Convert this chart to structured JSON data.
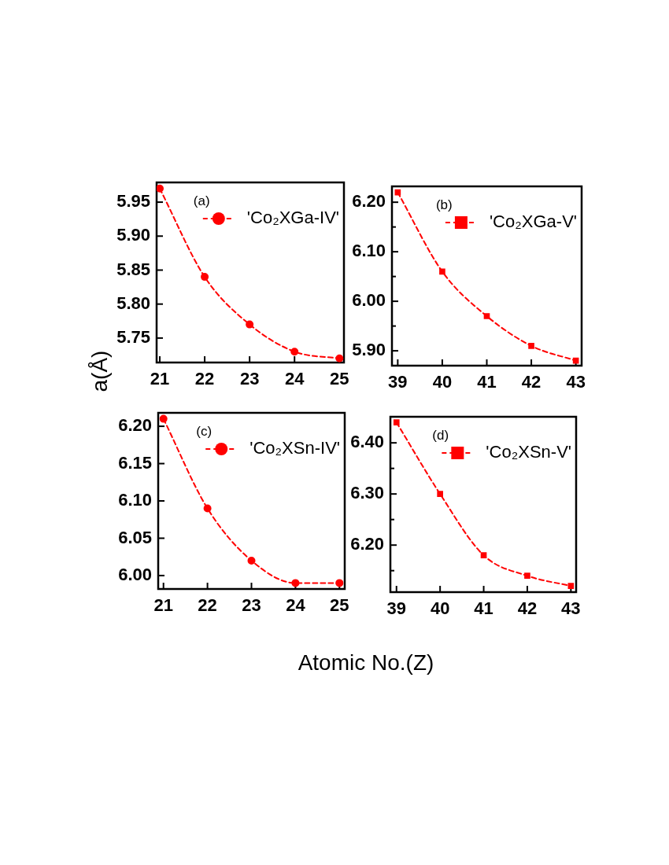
{
  "chart_data": [
    {
      "type": "line",
      "x": [
        21,
        22,
        23,
        24,
        25
      ],
      "xlim": [
        20.93,
        25.1
      ],
      "xticks": [
        21,
        22,
        23,
        24,
        25
      ],
      "ylim": [
        5.714,
        5.979
      ],
      "yticks": [
        5.95,
        {
          "value": 5.9,
          "label": "5.90"
        },
        5.85,
        {
          "value": 5.8,
          "label": "5.80"
        },
        5.75
      ],
      "ylabel": "a(Å)",
      "series": [
        {
          "name": "'Co₂XGa-IV'",
          "color": "#ff0000",
          "values": [
            5.97,
            5.84,
            5.77,
            5.73,
            5.72
          ]
        }
      ],
      "marker": "circle",
      "line_style": "dashed",
      "legend": "top right",
      "annotations": [
        "(a)"
      ]
    },
    {
      "type": "line",
      "x": [
        39,
        40,
        41,
        42,
        43
      ],
      "xlim": [
        38.87,
        43.13
      ],
      "xticks": [
        39,
        40,
        41,
        42,
        43
      ],
      "ylim": [
        5.87,
        6.232
      ],
      "yticks": [
        {
          "value": 6.2,
          "label": "6.20"
        },
        {
          "value": 6.15,
          "label": null
        },
        {
          "value": 6.1,
          "label": "6.10"
        },
        {
          "value": 6.05,
          "label": null
        },
        {
          "value": 6.0,
          "label": "6.00"
        },
        {
          "value": 5.95,
          "label": null
        },
        {
          "value": 5.9,
          "label": "5.90"
        }
      ],
      "series": [
        {
          "name": "'Co₂XGa-V'",
          "color": "#ff0000",
          "values": [
            6.22,
            6.06,
            5.97,
            5.91,
            5.88
          ]
        }
      ],
      "marker": "square",
      "line_style": "dashed",
      "legend": "top right",
      "annotations": [
        "(b)"
      ]
    },
    {
      "type": "line",
      "x": [
        21,
        22,
        23,
        24,
        25
      ],
      "xlim": [
        20.88,
        25.12
      ],
      "xticks": [
        21,
        22,
        23,
        24,
        25
      ],
      "ylim": [
        5.982,
        6.218
      ],
      "yticks": [
        {
          "value": 6.2,
          "label": "6.20"
        },
        6.15,
        {
          "value": 6.1,
          "label": "6.10"
        },
        6.05,
        {
          "value": 6.0,
          "label": "6.00"
        }
      ],
      "xlabel": "Atomic No.(Z)",
      "series": [
        {
          "name": "'Co₂XSn-IV'",
          "color": "#ff0000",
          "values": [
            6.21,
            6.09,
            6.02,
            5.99,
            5.99
          ]
        }
      ],
      "marker": "circle",
      "line_style": "dashed",
      "legend": "top right",
      "annotations": [
        "(c)"
      ]
    },
    {
      "type": "line",
      "x": [
        39,
        40,
        41,
        42,
        43
      ],
      "xlim": [
        38.86,
        43.12
      ],
      "xticks": [
        39,
        40,
        41,
        42,
        43
      ],
      "ylim": [
        6.108,
        6.451
      ],
      "yticks": [
        {
          "value": 6.4,
          "label": "6.40"
        },
        {
          "value": 6.35,
          "label": null
        },
        {
          "value": 6.3,
          "label": "6.30"
        },
        {
          "value": 6.25,
          "label": null
        },
        {
          "value": 6.2,
          "label": "6.20"
        },
        {
          "value": 6.15,
          "label": null
        }
      ],
      "series": [
        {
          "name": "'Co₂XSn-V'",
          "color": "#ff0000",
          "values": [
            6.44,
            6.3,
            6.18,
            6.14,
            6.12
          ]
        }
      ],
      "marker": "square",
      "line_style": "dashed",
      "legend": "top right",
      "annotations": [
        "(d)"
      ]
    }
  ]
}
